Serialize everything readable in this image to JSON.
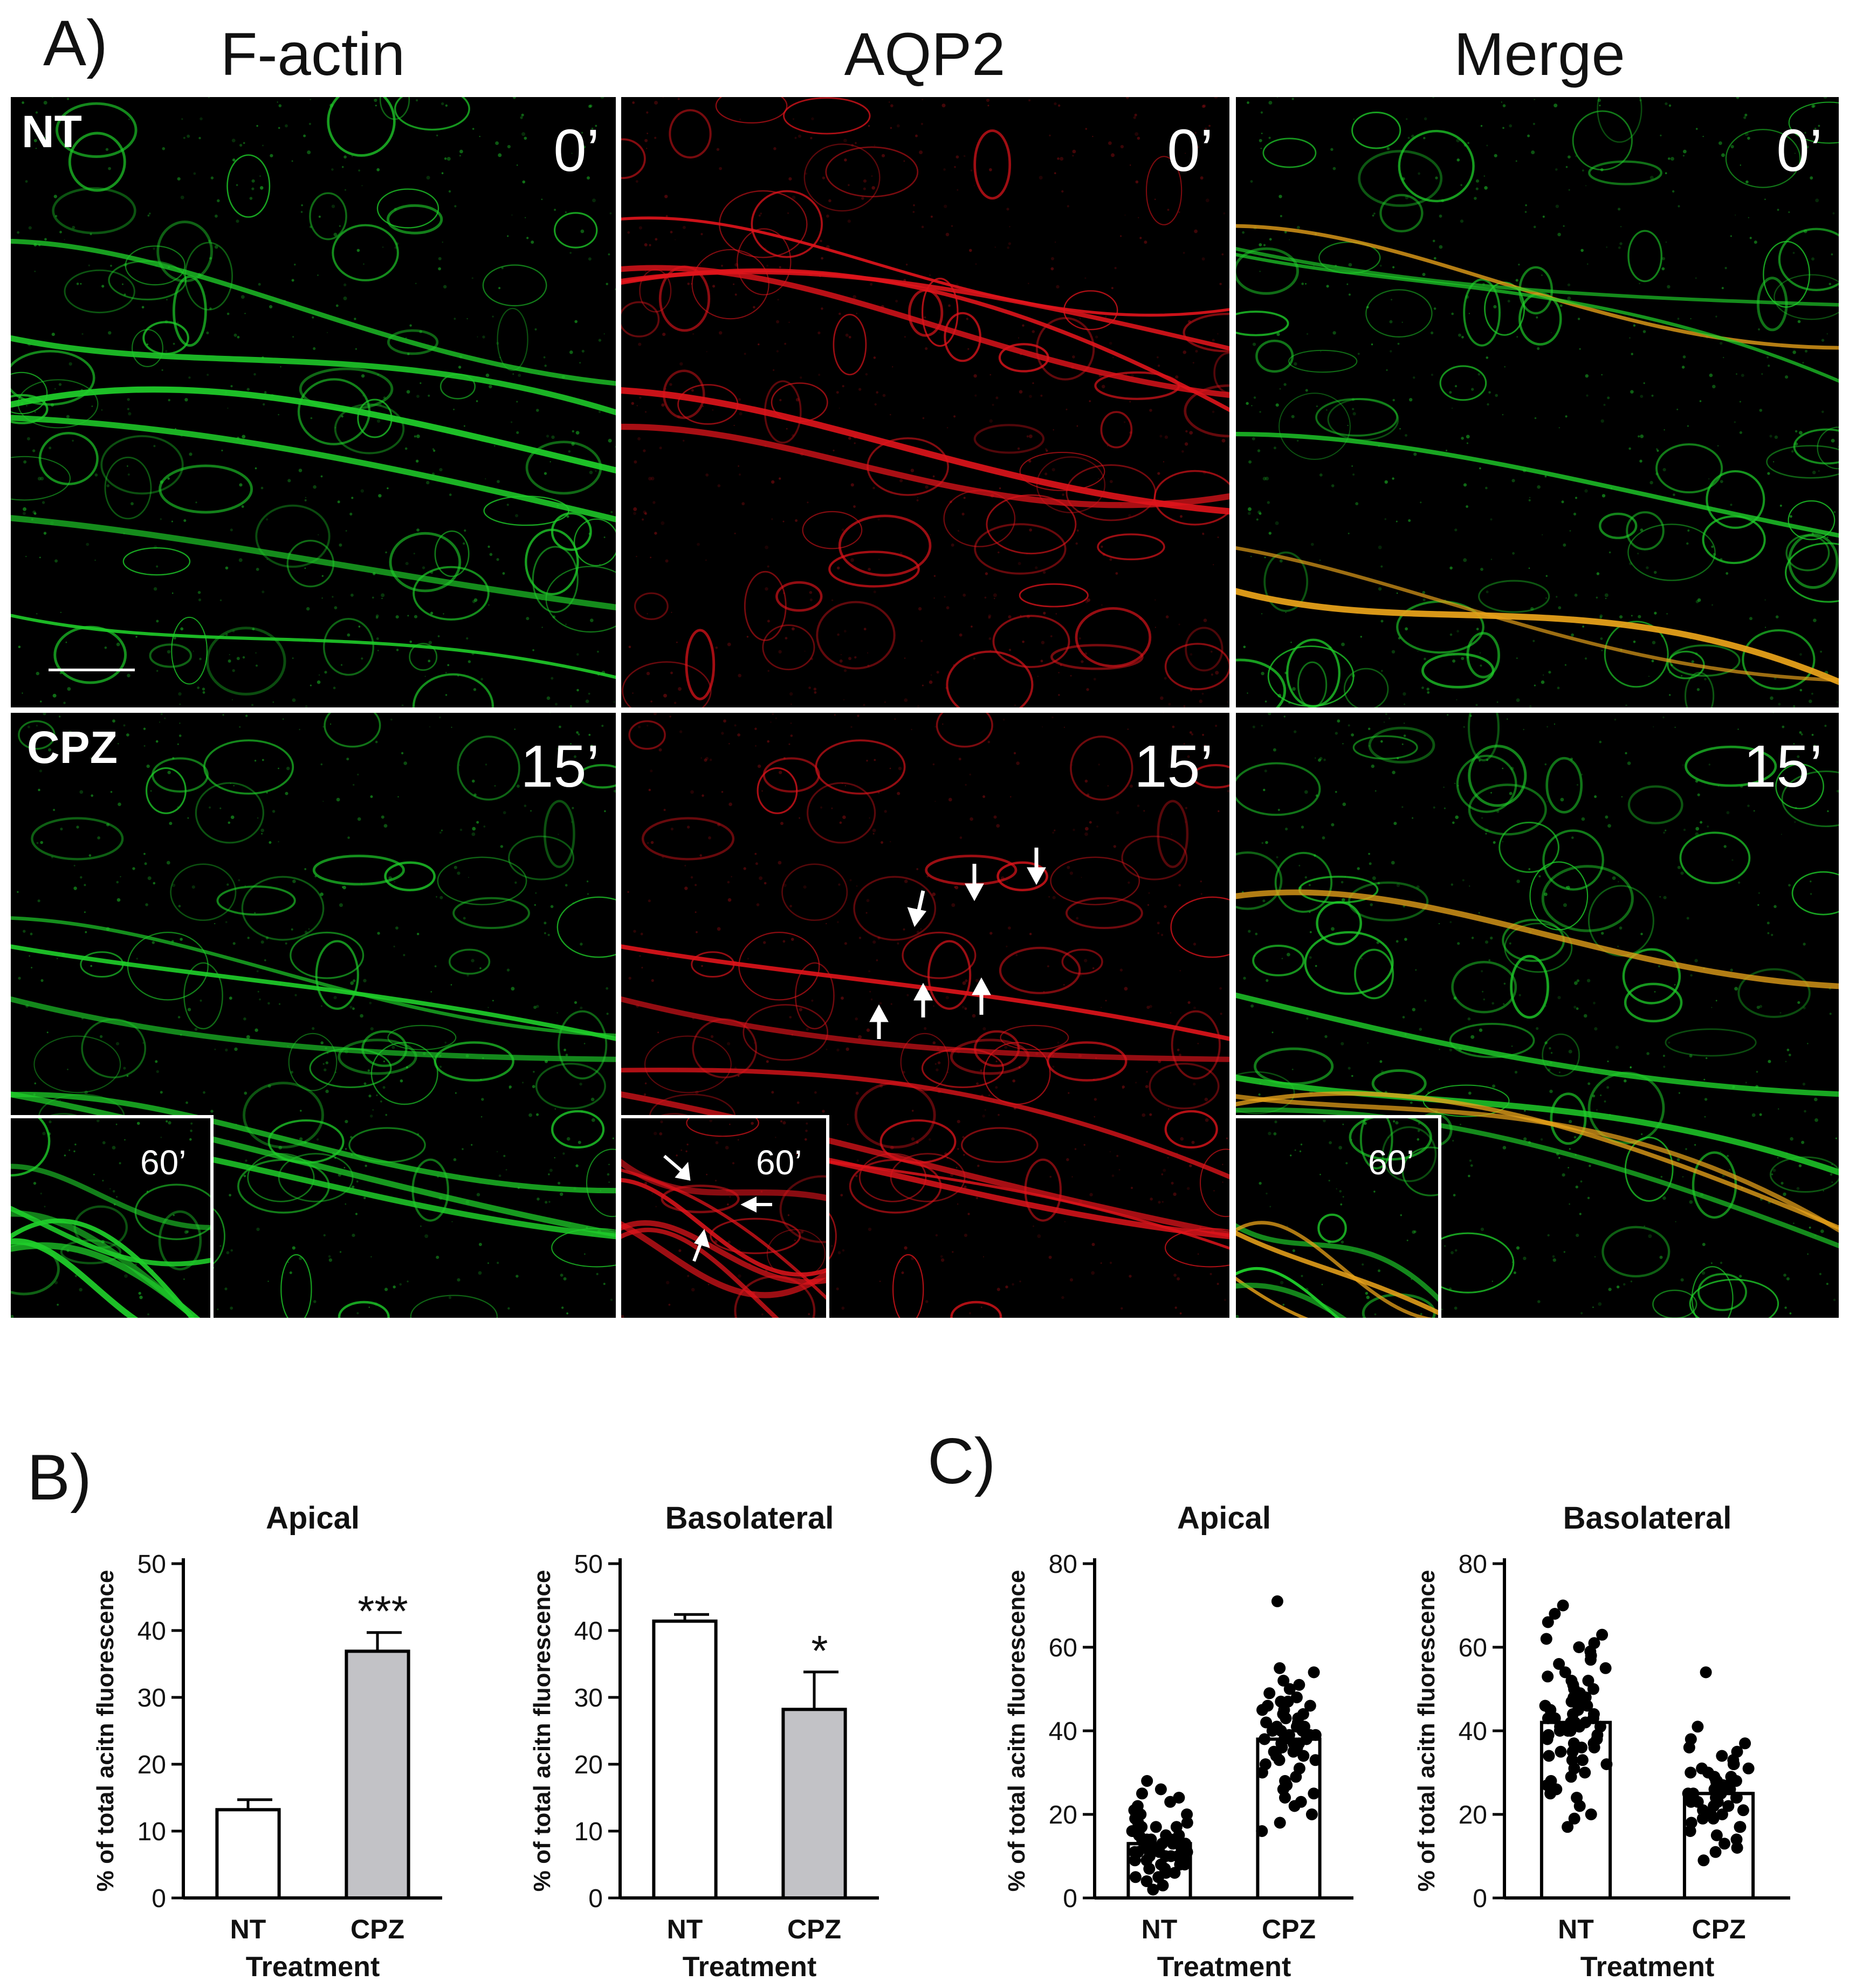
{
  "panels": {
    "A": "A)",
    "B": "B)",
    "C": "C)"
  },
  "micrograph": {
    "columns": [
      "F-actin",
      "AQP2",
      "Merge"
    ],
    "rows": [
      {
        "label": "NT",
        "time": "0’"
      },
      {
        "label": "CPZ",
        "time": "15’",
        "inset_time": "60’"
      }
    ],
    "colors": {
      "factin": "#1fcf2a",
      "aqp2": "#e0141b",
      "merge": "#e8a21a"
    }
  },
  "chart_data": [
    {
      "panel": "B",
      "type": "bar",
      "title": "Apical",
      "categories": [
        "NT",
        "CPZ"
      ],
      "values": [
        13.2,
        36.9
      ],
      "errors": [
        1.5,
        2.8
      ],
      "fills": [
        "#ffffff",
        "#c2c2c6"
      ],
      "significance": [
        "",
        "***"
      ],
      "xlabel": "Treatment",
      "ylabel": "% of total acitn fluorescence",
      "ylim": [
        0,
        50
      ],
      "yticks": [
        "0",
        "10",
        "20",
        "30",
        "40",
        "50"
      ]
    },
    {
      "panel": "B",
      "type": "bar",
      "title": "Basolateral",
      "categories": [
        "NT",
        "CPZ"
      ],
      "values": [
        41.4,
        28.2
      ],
      "errors": [
        1.0,
        5.6
      ],
      "fills": [
        "#ffffff",
        "#c2c2c6"
      ],
      "significance": [
        "",
        "*"
      ],
      "xlabel": "Treatment",
      "ylabel": "% of total acitn fluorescence",
      "ylim": [
        0,
        50
      ],
      "yticks": [
        "0",
        "10",
        "20",
        "30",
        "40",
        "50"
      ]
    },
    {
      "panel": "C",
      "type": "bar",
      "title": "Apical",
      "categories": [
        "NT",
        "CPZ"
      ],
      "values": [
        13,
        38
      ],
      "points": [
        [
          28,
          26,
          25,
          24,
          23,
          22,
          21,
          20,
          20,
          19,
          19,
          18,
          18,
          17,
          17,
          17,
          16,
          16,
          16,
          15,
          15,
          15,
          15,
          14,
          14,
          14,
          14,
          13,
          13,
          13,
          13,
          13,
          12,
          12,
          12,
          12,
          12,
          11,
          11,
          11,
          11,
          10,
          10,
          10,
          10,
          9,
          9,
          9,
          8,
          8,
          8,
          7,
          7,
          6,
          6,
          5,
          5,
          4,
          3,
          2
        ],
        [
          71,
          55,
          54,
          52,
          51,
          50,
          49,
          48,
          47,
          47,
          46,
          46,
          45,
          45,
          44,
          44,
          43,
          43,
          42,
          42,
          41,
          41,
          41,
          40,
          40,
          40,
          39,
          39,
          39,
          38,
          38,
          38,
          37,
          37,
          37,
          36,
          36,
          35,
          35,
          34,
          34,
          33,
          33,
          32,
          31,
          30,
          29,
          28,
          27,
          26,
          25,
          24,
          23,
          22,
          20,
          18,
          16
        ]
      ],
      "xlabel": "Treatment",
      "ylabel": "% of total acitn fluorescence",
      "ylim": [
        0,
        80
      ],
      "yticks": [
        "0",
        "20",
        "40",
        "60",
        "80"
      ]
    },
    {
      "panel": "C",
      "type": "bar",
      "title": "Basolateral",
      "categories": [
        "NT",
        "CPZ"
      ],
      "values": [
        42,
        25
      ],
      "points": [
        [
          70,
          68,
          66,
          63,
          62,
          61,
          60,
          59,
          58,
          57,
          56,
          55,
          54,
          53,
          52,
          52,
          51,
          50,
          50,
          49,
          48,
          48,
          47,
          47,
          46,
          46,
          45,
          45,
          44,
          44,
          43,
          43,
          43,
          42,
          42,
          42,
          41,
          41,
          41,
          40,
          40,
          40,
          39,
          39,
          38,
          38,
          37,
          37,
          36,
          36,
          35,
          35,
          34,
          33,
          33,
          32,
          31,
          30,
          29,
          28,
          27,
          26,
          25,
          24,
          22,
          20,
          19,
          17
        ],
        [
          54,
          41,
          38,
          37,
          36,
          35,
          34,
          33,
          32,
          32,
          31,
          31,
          30,
          30,
          29,
          29,
          28,
          28,
          28,
          27,
          27,
          27,
          26,
          26,
          26,
          25,
          25,
          25,
          24,
          24,
          24,
          23,
          23,
          23,
          22,
          22,
          21,
          21,
          20,
          20,
          19,
          19,
          18,
          17,
          17,
          16,
          15,
          14,
          13,
          12,
          11,
          9
        ]
      ],
      "xlabel": "Treatment",
      "ylabel": "% of total acitn fluorescence",
      "ylim": [
        0,
        80
      ],
      "yticks": [
        "0",
        "20",
        "40",
        "60",
        "80"
      ]
    }
  ]
}
